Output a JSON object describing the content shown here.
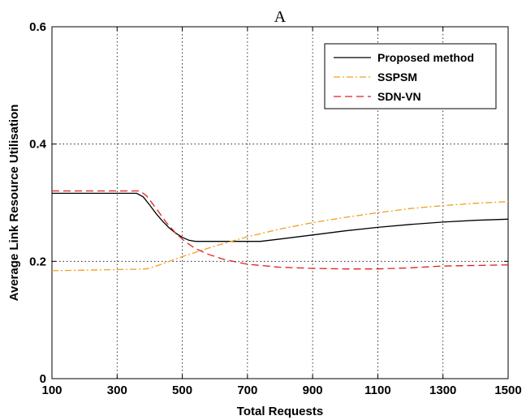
{
  "chart_data": {
    "type": "line",
    "title": "A",
    "xlabel": "Total Requests",
    "ylabel": "Average Link Resource Utilisation",
    "xlim": [
      100,
      1500
    ],
    "ylim": [
      0,
      0.6
    ],
    "xticks": [
      100,
      300,
      500,
      700,
      900,
      1100,
      1300,
      1500
    ],
    "yticks": [
      0,
      0.2,
      0.4,
      0.6
    ],
    "xtick_labels": [
      "100",
      "300",
      "500",
      "700",
      "900",
      "1100",
      "1300",
      "1500"
    ],
    "ytick_labels": [
      "0",
      "0.2",
      "0.4",
      "0.6"
    ],
    "grid": true,
    "legend_position": "top-right",
    "series": [
      {
        "name": "Proposed method",
        "color": "#000000",
        "dash": "solid",
        "points": [
          [
            100,
            0.316
          ],
          [
            360,
            0.316
          ],
          [
            380,
            0.31
          ],
          [
            400,
            0.296
          ],
          [
            420,
            0.281
          ],
          [
            440,
            0.268
          ],
          [
            460,
            0.257
          ],
          [
            480,
            0.248
          ],
          [
            500,
            0.241
          ],
          [
            520,
            0.236
          ],
          [
            540,
            0.234
          ],
          [
            600,
            0.234
          ],
          [
            740,
            0.234
          ],
          [
            800,
            0.238
          ],
          [
            900,
            0.245
          ],
          [
            1000,
            0.252
          ],
          [
            1100,
            0.258
          ],
          [
            1200,
            0.263
          ],
          [
            1300,
            0.267
          ],
          [
            1400,
            0.27
          ],
          [
            1500,
            0.272
          ]
        ]
      },
      {
        "name": "SSPSM",
        "color": "#f0a020",
        "dash": "dashdot",
        "points": [
          [
            100,
            0.184
          ],
          [
            200,
            0.185
          ],
          [
            300,
            0.186
          ],
          [
            390,
            0.187
          ],
          [
            420,
            0.192
          ],
          [
            460,
            0.2
          ],
          [
            500,
            0.208
          ],
          [
            550,
            0.217
          ],
          [
            600,
            0.226
          ],
          [
            700,
            0.242
          ],
          [
            800,
            0.255
          ],
          [
            900,
            0.266
          ],
          [
            1000,
            0.275
          ],
          [
            1100,
            0.283
          ],
          [
            1200,
            0.29
          ],
          [
            1300,
            0.295
          ],
          [
            1400,
            0.299
          ],
          [
            1500,
            0.302
          ]
        ]
      },
      {
        "name": "SDN-VN",
        "color": "#e02020",
        "dash": "dashed",
        "points": [
          [
            100,
            0.32
          ],
          [
            370,
            0.32
          ],
          [
            390,
            0.312
          ],
          [
            420,
            0.29
          ],
          [
            450,
            0.267
          ],
          [
            480,
            0.248
          ],
          [
            510,
            0.233
          ],
          [
            540,
            0.222
          ],
          [
            580,
            0.212
          ],
          [
            630,
            0.203
          ],
          [
            700,
            0.195
          ],
          [
            800,
            0.19
          ],
          [
            900,
            0.188
          ],
          [
            1000,
            0.187
          ],
          [
            1100,
            0.187
          ],
          [
            1200,
            0.189
          ],
          [
            1300,
            0.192
          ],
          [
            1400,
            0.193
          ],
          [
            1500,
            0.194
          ]
        ]
      }
    ]
  }
}
